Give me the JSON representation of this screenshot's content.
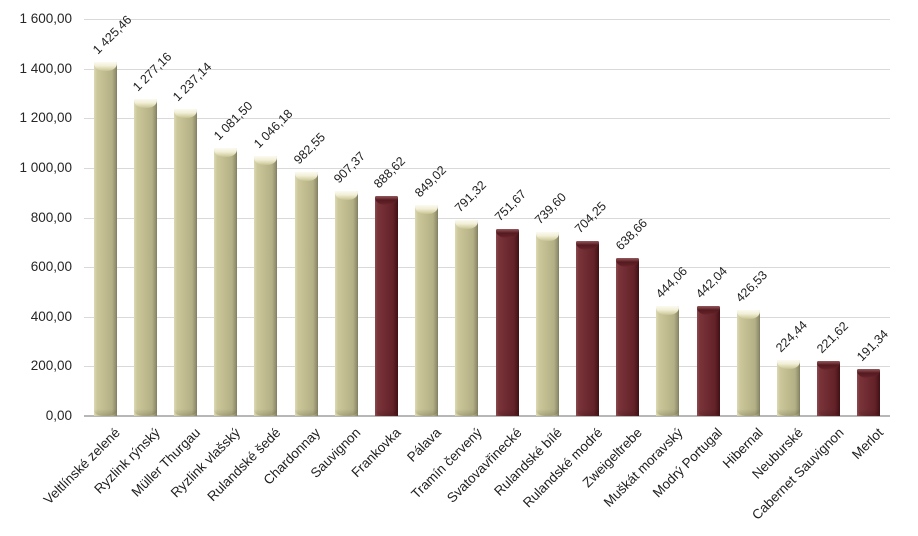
{
  "chart_data": {
    "type": "bar",
    "categories": [
      "Veltlínské zelené",
      "Ryzlink rýnský",
      "Müller Thurgau",
      "Ryzlink vlašský",
      "Rulandské šedé",
      "Chardonnay",
      "Sauvignon",
      "Frankovka",
      "Pálava",
      "Tramín červený",
      "Svatovavřinecké",
      "Rulandské bílé",
      "Rulandské modré",
      "Zweigeltrebe",
      "Muškát moravský",
      "Modrý Portugal",
      "Hibernal",
      "Neuburské",
      "Cabernet Sauvignon",
      "Merlot"
    ],
    "values": [
      1425.46,
      1277.16,
      1237.14,
      1081.5,
      1046.18,
      982.55,
      907.37,
      888.62,
      849.02,
      791.32,
      751.67,
      739.6,
      704.25,
      638.66,
      444.06,
      442.04,
      426.53,
      224.44,
      221.62,
      191.34
    ],
    "value_labels": [
      "1 425,46",
      "1 277,16",
      "1 237,14",
      "1 081,50",
      "1 046,18",
      "982,55",
      "907,37",
      "888,62",
      "849,02",
      "791,32",
      "751,67",
      "739,60",
      "704,25",
      "638,66",
      "444,06",
      "442,04",
      "426,53",
      "224,44",
      "221,62",
      "191,34"
    ],
    "bar_colors": [
      "khaki",
      "khaki",
      "khaki",
      "khaki",
      "khaki",
      "khaki",
      "khaki",
      "dark_red",
      "khaki",
      "khaki",
      "dark_red",
      "khaki",
      "dark_red",
      "dark_red",
      "khaki",
      "dark_red",
      "khaki",
      "khaki",
      "dark_red",
      "dark_red"
    ],
    "palette": {
      "khaki": "#C0BC90",
      "dark_red": "#6E2B31"
    },
    "title": "",
    "xlabel": "",
    "ylabel": "",
    "ylim": [
      0,
      1600
    ],
    "ytick_step": 200,
    "ytick_labels": [
      "0,00",
      "200,00",
      "400,00",
      "600,00",
      "800,00",
      "1 000,00",
      "1 200,00",
      "1 400,00",
      "1 600,00"
    ],
    "grid": true,
    "legend": "none",
    "value_label_rotation_deg": 45,
    "category_label_rotation_deg": 45
  }
}
